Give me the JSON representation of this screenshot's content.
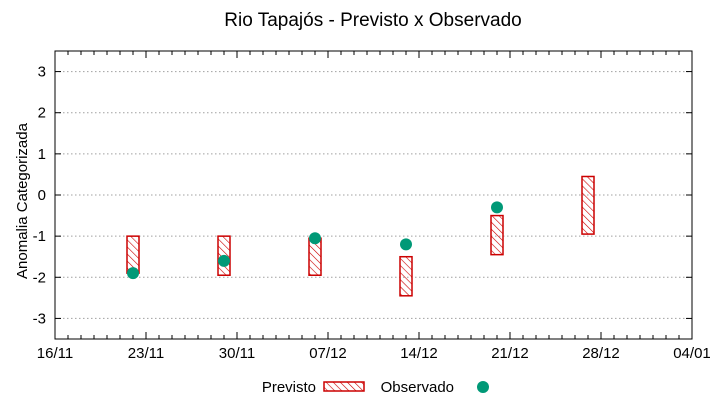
{
  "chart_data": {
    "type": "range-bar-and-scatter",
    "title": "Rio Tapajós - Previsto x Observado",
    "xlabel": "",
    "ylabel": "Anomalia Categorizada",
    "ylim": [
      -3.5,
      3.5
    ],
    "yticks": [
      -3,
      -2,
      -1,
      0,
      1,
      2,
      3
    ],
    "xticks": [
      "16/11",
      "23/11",
      "30/11",
      "07/12",
      "14/12",
      "21/12",
      "28/12",
      "04/01"
    ],
    "minor_ticks_per_interval": 7,
    "grid": "horizontal dotted",
    "legend_position": "bottom-center",
    "series": [
      {
        "name": "Previsto",
        "style": "hatched-box",
        "color": "#cc0000",
        "points": [
          {
            "x": "22/11",
            "low": -1.9,
            "high": -1.0
          },
          {
            "x": "29/11",
            "low": -1.95,
            "high": -1.0
          },
          {
            "x": "06/12",
            "low": -1.95,
            "high": -1.05
          },
          {
            "x": "13/12",
            "low": -2.45,
            "high": -1.5
          },
          {
            "x": "20/12",
            "low": -1.45,
            "high": -0.5
          },
          {
            "x": "27/12",
            "low": -0.95,
            "high": 0.45
          }
        ]
      },
      {
        "name": "Observado",
        "style": "marker-circle",
        "color": "#009977",
        "points": [
          {
            "x": "22/11",
            "y": -1.9
          },
          {
            "x": "29/11",
            "y": -1.6
          },
          {
            "x": "06/12",
            "y": -1.05
          },
          {
            "x": "13/12",
            "y": -1.2
          },
          {
            "x": "20/12",
            "y": -0.3
          }
        ]
      }
    ]
  }
}
